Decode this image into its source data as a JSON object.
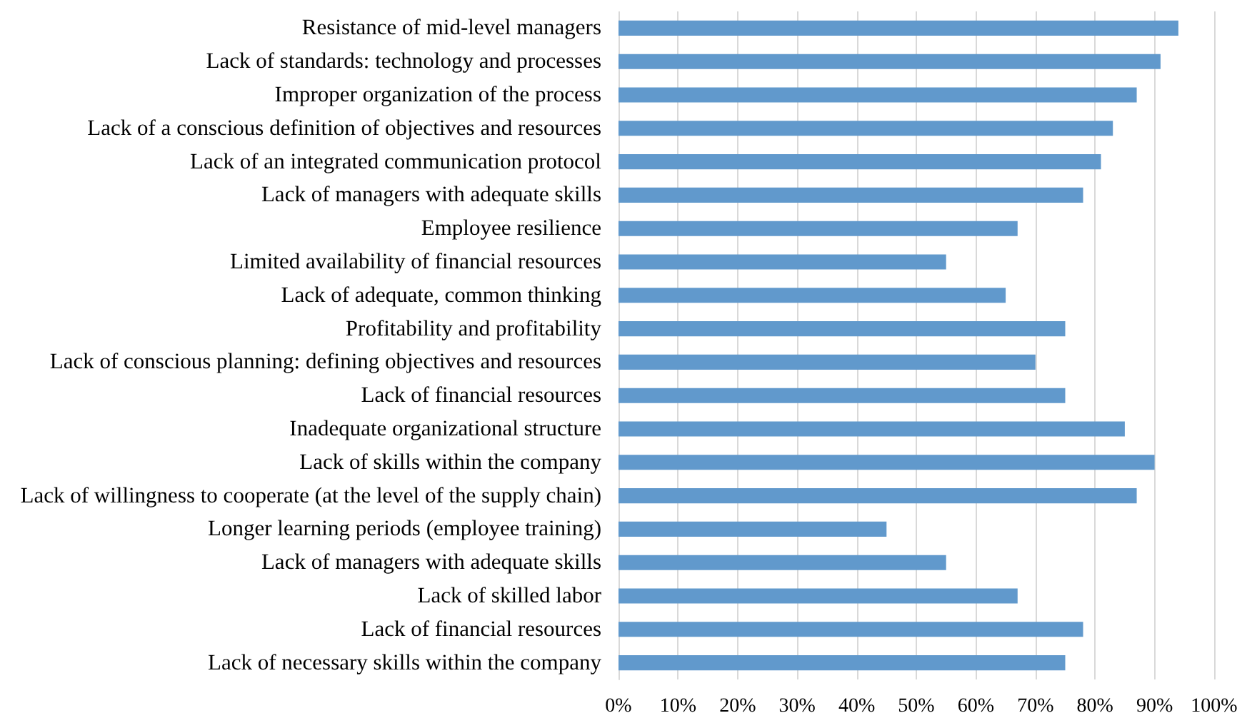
{
  "chart_data": {
    "type": "bar",
    "orientation": "horizontal",
    "categories": [
      "Resistance of mid-level managers",
      "Lack of standards: technology and processes",
      "Improper organization of the process",
      "Lack of a conscious definition of objectives and resources",
      "Lack of an integrated communication protocol",
      "Lack of managers with adequate skills",
      "Employee resilience",
      "Limited availability of financial resources",
      "Lack of adequate, common thinking",
      "Profitability and profitability",
      "Lack of conscious planning: defining objectives and resources",
      "Lack of financial resources",
      "Inadequate organizational structure",
      "Lack of skills within the company",
      "Lack of willingness to cooperate (at the level of the supply chain)",
      "Longer learning periods (employee training)",
      "Lack of managers with adequate skills",
      "Lack of skilled labor",
      "Lack of financial resources",
      "Lack of necessary skills within the company"
    ],
    "values": [
      94,
      91,
      87,
      83,
      81,
      78,
      67,
      55,
      65,
      75,
      70,
      75,
      85,
      90,
      87,
      45,
      55,
      67,
      78,
      75
    ],
    "color": "#6199cc",
    "xlim": [
      0,
      100
    ],
    "xticks": [
      {
        "value": 0,
        "label": "0%"
      },
      {
        "value": 10,
        "label": "10%"
      },
      {
        "value": 20,
        "label": "20%"
      },
      {
        "value": 30,
        "label": "30%"
      },
      {
        "value": 40,
        "label": "40%"
      },
      {
        "value": 50,
        "label": "50%"
      },
      {
        "value": 60,
        "label": "60%"
      },
      {
        "value": 70,
        "label": "70%"
      },
      {
        "value": 80,
        "label": "80%"
      },
      {
        "value": 90,
        "label": "90%"
      },
      {
        "value": 100,
        "label": "100%"
      }
    ],
    "grid": "x"
  }
}
